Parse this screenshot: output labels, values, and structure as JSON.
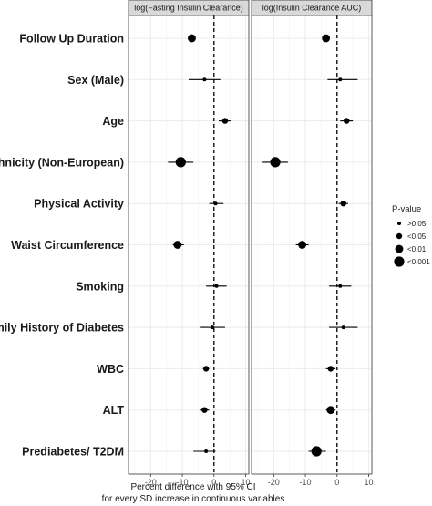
{
  "chart_data": {
    "type": "scatter",
    "subtype": "forest-plot",
    "xlabel_line1": "Percent difference with 95% CI",
    "xlabel_line2": "for every SD increase in continuous variables",
    "xlim": [
      -27,
      11
    ],
    "x_ticks": [
      -20,
      -10,
      0,
      10
    ],
    "x_tick_labels": [
      "-20",
      "-10",
      "0",
      "10"
    ],
    "reference_line": 0,
    "grid": true,
    "legend_position": "right",
    "legend": {
      "title": "P-value",
      "levels": [
        ">0.05",
        "<0.05",
        "<0.01",
        "<0.001"
      ],
      "sizes": [
        1,
        2,
        3,
        4
      ]
    },
    "categories": [
      "Follow Up Duration",
      "Sex (Male)",
      "Age",
      "Ethnicity (Non-European)",
      "Physical Activity",
      "Waist Circumference",
      "Smoking",
      "Family History of Diabetes",
      "WBC",
      "ALT",
      "Prediabetes/ T2DM"
    ],
    "panels": [
      {
        "title": "log(Fasting Insulin Clearance)",
        "points": [
          {
            "est": -7.0,
            "lo": -7.0,
            "hi": -7.0,
            "p": 3
          },
          {
            "est": -3.0,
            "lo": -8.0,
            "hi": 2.0,
            "p": 1
          },
          {
            "est": 3.5,
            "lo": 1.5,
            "hi": 5.5,
            "p": 2
          },
          {
            "est": -10.5,
            "lo": -14.5,
            "hi": -6.5,
            "p": 4
          },
          {
            "est": 0.5,
            "lo": -1.5,
            "hi": 3.0,
            "p": 1
          },
          {
            "est": -11.5,
            "lo": -13.0,
            "hi": -9.5,
            "p": 3
          },
          {
            "est": 0.8,
            "lo": -2.5,
            "hi": 4.0,
            "p": 1
          },
          {
            "est": -0.5,
            "lo": -4.5,
            "hi": 3.5,
            "p": 1
          },
          {
            "est": -2.5,
            "lo": -3.5,
            "hi": -1.5,
            "p": 2
          },
          {
            "est": -3.0,
            "lo": -4.5,
            "hi": -1.5,
            "p": 2
          },
          {
            "est": -2.5,
            "lo": -6.5,
            "hi": 0.5,
            "p": 1
          }
        ]
      },
      {
        "title": "log(Insulin Clearance AUC)",
        "points": [
          {
            "est": -3.5,
            "lo": -3.5,
            "hi": -3.5,
            "p": 3
          },
          {
            "est": 1.0,
            "lo": -3.0,
            "hi": 6.5,
            "p": 1
          },
          {
            "est": 3.0,
            "lo": 1.0,
            "hi": 5.0,
            "p": 2
          },
          {
            "est": -19.5,
            "lo": -23.5,
            "hi": -15.5,
            "p": 4
          },
          {
            "est": 2.0,
            "lo": 0.5,
            "hi": 3.5,
            "p": 2
          },
          {
            "est": -11.0,
            "lo": -13.0,
            "hi": -9.0,
            "p": 3
          },
          {
            "est": 1.0,
            "lo": -2.5,
            "hi": 4.5,
            "p": 1
          },
          {
            "est": 2.0,
            "lo": -2.5,
            "hi": 6.5,
            "p": 1
          },
          {
            "est": -2.0,
            "lo": -3.5,
            "hi": -0.5,
            "p": 2
          },
          {
            "est": -2.0,
            "lo": -3.5,
            "hi": -0.5,
            "p": 3
          },
          {
            "est": -6.5,
            "lo": -9.0,
            "hi": -3.5,
            "p": 4
          }
        ]
      }
    ]
  }
}
